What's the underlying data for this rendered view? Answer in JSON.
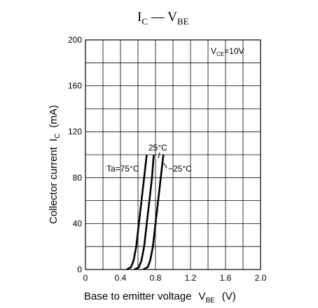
{
  "chart_data": {
    "type": "line",
    "title": {
      "main": "I",
      "sub1": "C",
      "sep": " — V",
      "sub2": "BE"
    },
    "xlabel": {
      "main": "Base to emitter voltage",
      "sym": "V",
      "sub": "BE",
      "unit": "(V)"
    },
    "ylabel": {
      "main": "Collector current",
      "sym": "I",
      "sub": "C",
      "unit": "(mA)"
    },
    "xlim": [
      0,
      2.0
    ],
    "ylim": [
      0,
      200
    ],
    "xticks": [
      "0",
      "0.4",
      "0.8",
      "1.2",
      "1.6",
      "2.0"
    ],
    "yticks": [
      "0",
      "40",
      "80",
      "120",
      "160",
      "200"
    ],
    "grid": true,
    "condition": {
      "sym": "V",
      "sub": "CE",
      "value": "=10V"
    },
    "series": [
      {
        "name": "Ta=75°C",
        "x": [
          0.47,
          0.52,
          0.55,
          0.58,
          0.61,
          0.64,
          0.67,
          0.7
        ],
        "y": [
          0,
          2,
          8,
          20,
          40,
          60,
          80,
          100
        ]
      },
      {
        "name": "25°C",
        "x": [
          0.56,
          0.61,
          0.64,
          0.67,
          0.7,
          0.73,
          0.76,
          0.78
        ],
        "y": [
          0,
          2,
          8,
          20,
          40,
          60,
          80,
          100
        ]
      },
      {
        "name": "−25°C",
        "x": [
          0.66,
          0.71,
          0.74,
          0.77,
          0.8,
          0.83,
          0.86,
          0.89
        ],
        "y": [
          0,
          2,
          8,
          20,
          40,
          60,
          80,
          100
        ]
      }
    ]
  }
}
